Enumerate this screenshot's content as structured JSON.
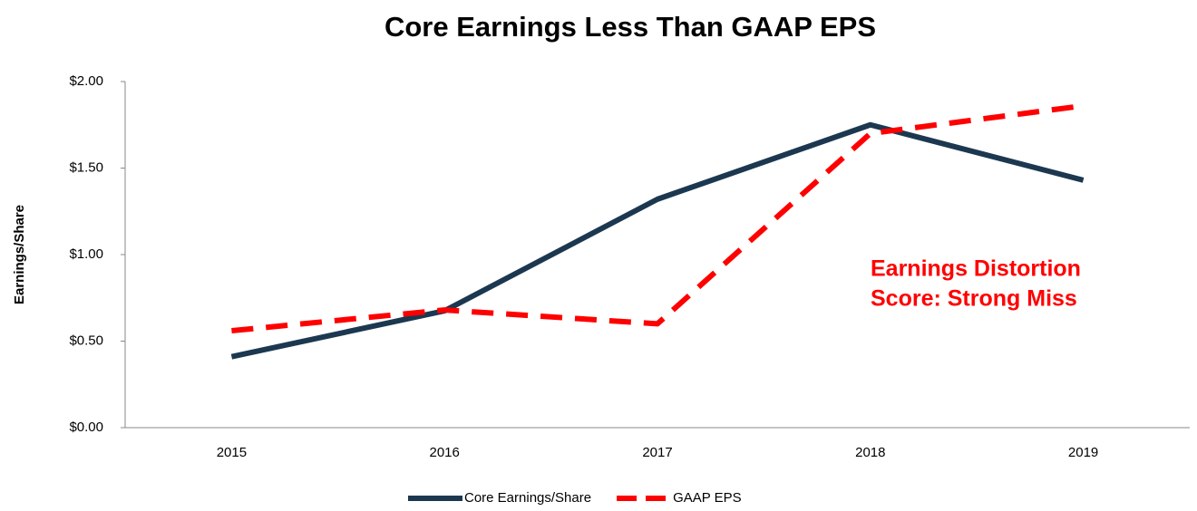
{
  "chart_data": {
    "type": "line",
    "title": "Core Earnings Less Than GAAP EPS",
    "y_label": "Earnings/Share",
    "categories": [
      "2015",
      "2016",
      "2017",
      "2018",
      "2019"
    ],
    "series": [
      {
        "name": "Core Earnings/Share",
        "color": "#1c3850",
        "dashed": false,
        "values": [
          0.41,
          0.675,
          1.32,
          1.75,
          1.43
        ]
      },
      {
        "name": "GAAP EPS",
        "color": "#ff0000",
        "dashed": true,
        "values": [
          0.56,
          0.68,
          0.6,
          1.7,
          1.86
        ]
      }
    ],
    "ylim": [
      0,
      2
    ],
    "yticks": [
      {
        "value": 0,
        "label": "$0.00"
      },
      {
        "value": 0.5,
        "label": "$0.50"
      },
      {
        "value": 1,
        "label": "$1.00"
      },
      {
        "value": 1.5,
        "label": "$1.50"
      },
      {
        "value": 2,
        "label": "$2.00"
      }
    ],
    "grid": false,
    "legend": "bottom",
    "annotation": {
      "lines": [
        "Earnings Distortion",
        "Score: Strong Miss"
      ],
      "color": "#ff0000"
    }
  }
}
